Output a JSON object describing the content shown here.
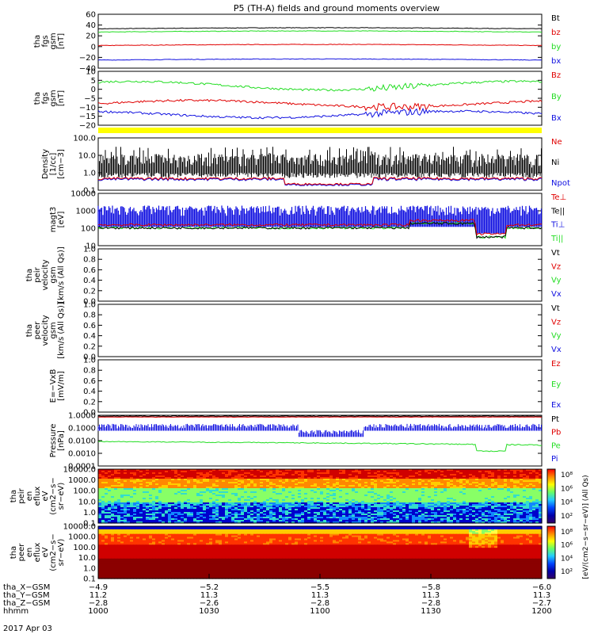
{
  "title": "P5 (TH-A) fields and ground moments overview",
  "colors": {
    "black": "#000000",
    "red": "#e00000",
    "green": "#22dd22",
    "blue": "#1010e0",
    "yellow": "#ffff00"
  },
  "chart_data": [
    {
      "type": "line",
      "panel": "fgs_gsm_mag",
      "ylabel": [
        "tha",
        "fgs",
        "gsm",
        "[nT]"
      ],
      "ylim": [
        -40,
        60
      ],
      "ticks": [
        "60",
        "40",
        "20",
        "0",
        "−20",
        "−40"
      ],
      "series": [
        {
          "name": "Bt",
          "color": "black",
          "level": 33
        },
        {
          "name": "bz",
          "color": "red",
          "level": 2
        },
        {
          "name": "by",
          "color": "green",
          "level": 27
        },
        {
          "name": "bx",
          "color": "blue",
          "level": -25
        }
      ]
    },
    {
      "type": "line",
      "panel": "fgs_gsm_components",
      "ylabel": [
        "tha",
        "fgs",
        "gsm",
        "[nT]"
      ],
      "ylim": [
        -20,
        10
      ],
      "ticks": [
        "10",
        "5",
        "0",
        "−5",
        "−10",
        "−15",
        "−20"
      ],
      "series": [
        {
          "name": "Bz",
          "color": "red",
          "level": -8
        },
        {
          "name": "By",
          "color": "green",
          "level": 2
        },
        {
          "name": "Bx",
          "color": "blue",
          "level": -14
        }
      ]
    },
    {
      "type": "line",
      "panel": "density",
      "ylabel": [
        "Density",
        "[1/cc]",
        "[cm−3]"
      ],
      "scale": "log",
      "ylim": [
        0.1,
        100
      ],
      "ticks": [
        "100.0",
        "10.0",
        "1.0",
        "0.1"
      ],
      "series": [
        {
          "name": "Ne",
          "color": "red"
        },
        {
          "name": "Ni",
          "color": "black"
        },
        {
          "name": "Npot",
          "color": "blue"
        }
      ]
    },
    {
      "type": "line",
      "panel": "temperature",
      "ylabel": [
        "magt3",
        "[eV]"
      ],
      "scale": "log",
      "ylim": [
        10,
        10000
      ],
      "ticks": [
        "10000",
        "1000",
        "100",
        "10"
      ],
      "series": [
        {
          "name": "Te⊥",
          "color": "red"
        },
        {
          "name": "Te||",
          "color": "black"
        },
        {
          "name": "Ti⊥",
          "color": "blue"
        },
        {
          "name": "Ti||",
          "color": "green"
        }
      ]
    },
    {
      "type": "line",
      "panel": "peir_velocity",
      "ylabel": [
        "tha",
        "peir",
        "velocity",
        "gsm",
        "[km/s (All Qs)]"
      ],
      "ylim": [
        0,
        1
      ],
      "ticks": [
        "1.0",
        "0.8",
        "0.6",
        "0.4",
        "0.2",
        "0.0"
      ],
      "series": [
        {
          "name": "Vt",
          "color": "black"
        },
        {
          "name": "Vz",
          "color": "red"
        },
        {
          "name": "Vy",
          "color": "green"
        },
        {
          "name": "Vx",
          "color": "blue"
        }
      ]
    },
    {
      "type": "line",
      "panel": "peer_velocity",
      "ylabel": [
        "tha",
        "peer",
        "velocity",
        "gsm",
        "[km/s (All Qs)]"
      ],
      "ylim": [
        0,
        1
      ],
      "ticks": [
        "1.0",
        "0.8",
        "0.6",
        "0.4",
        "0.2",
        "0.0"
      ],
      "series": [
        {
          "name": "Vt",
          "color": "black"
        },
        {
          "name": "Vz",
          "color": "red"
        },
        {
          "name": "Vy",
          "color": "green"
        },
        {
          "name": "Vx",
          "color": "blue"
        }
      ]
    },
    {
      "type": "line",
      "panel": "efield",
      "ylabel": [
        "E=−VxB",
        "[mV/m]"
      ],
      "ylim": [
        0,
        1
      ],
      "ticks": [
        "1.0",
        "0.8",
        "0.6",
        "0.4",
        "0.2",
        "0.0"
      ],
      "series": [
        {
          "name": "Ez",
          "color": "red"
        },
        {
          "name": "Ey",
          "color": "green"
        },
        {
          "name": "Ex",
          "color": "blue"
        }
      ]
    },
    {
      "type": "line",
      "panel": "pressure",
      "ylabel": [
        "Pressure",
        "[nPa]"
      ],
      "scale": "log",
      "ylim": [
        0.0001,
        1
      ],
      "ticks": [
        "1.0000",
        "0.1000",
        "0.0100",
        "0.0010",
        "0.0001"
      ],
      "series": [
        {
          "name": "Pt",
          "color": "black"
        },
        {
          "name": "Pb",
          "color": "red"
        },
        {
          "name": "Pe",
          "color": "green"
        },
        {
          "name": "Pi",
          "color": "blue"
        }
      ]
    },
    {
      "type": "heatmap",
      "panel": "peir_eflux",
      "ylabel": [
        "tha",
        "peir",
        "en",
        "eflux",
        "eV",
        "(cm2−s−",
        "sr−eV)"
      ],
      "ticks": [
        "10000.0",
        "1000.0",
        "100.0",
        "10.0",
        "1.0",
        "0.1"
      ]
    },
    {
      "type": "heatmap",
      "panel": "peer_eflux",
      "ylabel": [
        "tha",
        "peer",
        "en",
        "eflux",
        "eV",
        "(cm2−s−",
        "sr−eV)"
      ],
      "ticks": [
        "10000.0",
        "1000.0",
        "100.0",
        "10.0",
        "1.0",
        "0.1"
      ]
    }
  ],
  "colorbar": {
    "label": "[eV/(cm2−s−sr−eV)] (All Qs)",
    "ticks": [
      "10⁸",
      "10⁶",
      "10⁴",
      "10²"
    ]
  },
  "xaxis": {
    "rows": [
      {
        "label": "tha_X−GSM",
        "values": [
          "−4.9",
          "−5.2",
          "−5.5",
          "−5.8",
          "−6.0"
        ]
      },
      {
        "label": "tha_Y−GSM",
        "values": [
          "11.2",
          "11.3",
          "11.3",
          "11.3",
          "11.3"
        ]
      },
      {
        "label": "tha_Z−GSM",
        "values": [
          "−2.8",
          "−2.6",
          "−2.8",
          "−2.8",
          "−2.7"
        ]
      },
      {
        "label": "hhmm",
        "values": [
          "1000",
          "1030",
          "1100",
          "1130",
          "1200"
        ]
      }
    ],
    "date": "2017 Apr 03"
  }
}
